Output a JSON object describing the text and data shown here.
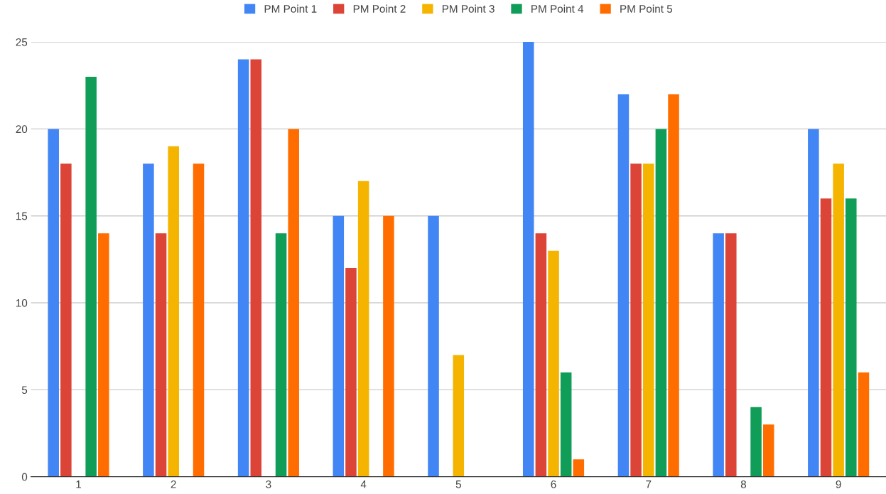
{
  "chart_data": {
    "type": "bar",
    "categories": [
      "1",
      "2",
      "3",
      "4",
      "5",
      "6",
      "7",
      "8",
      "9"
    ],
    "series": [
      {
        "name": "PM Point 1",
        "color": "#4285f4",
        "values": [
          20,
          18,
          24,
          15,
          15,
          25,
          22,
          14,
          20
        ]
      },
      {
        "name": "PM Point 2",
        "color": "#db4437",
        "values": [
          18,
          14,
          24,
          12,
          null,
          14,
          18,
          14,
          16
        ]
      },
      {
        "name": "PM Point 3",
        "color": "#f4b400",
        "values": [
          null,
          19,
          null,
          17,
          7,
          13,
          18,
          null,
          18
        ]
      },
      {
        "name": "PM Point 4",
        "color": "#0f9d58",
        "values": [
          23,
          null,
          14,
          null,
          null,
          6,
          20,
          4,
          16
        ]
      },
      {
        "name": "PM Point 5",
        "color": "#ff6d01",
        "values": [
          14,
          18,
          20,
          15,
          null,
          1,
          22,
          3,
          6
        ]
      }
    ],
    "ylim": [
      0,
      25
    ],
    "yticks": [
      0,
      5,
      10,
      15,
      20,
      25
    ],
    "grid": "y",
    "legend": "top"
  }
}
